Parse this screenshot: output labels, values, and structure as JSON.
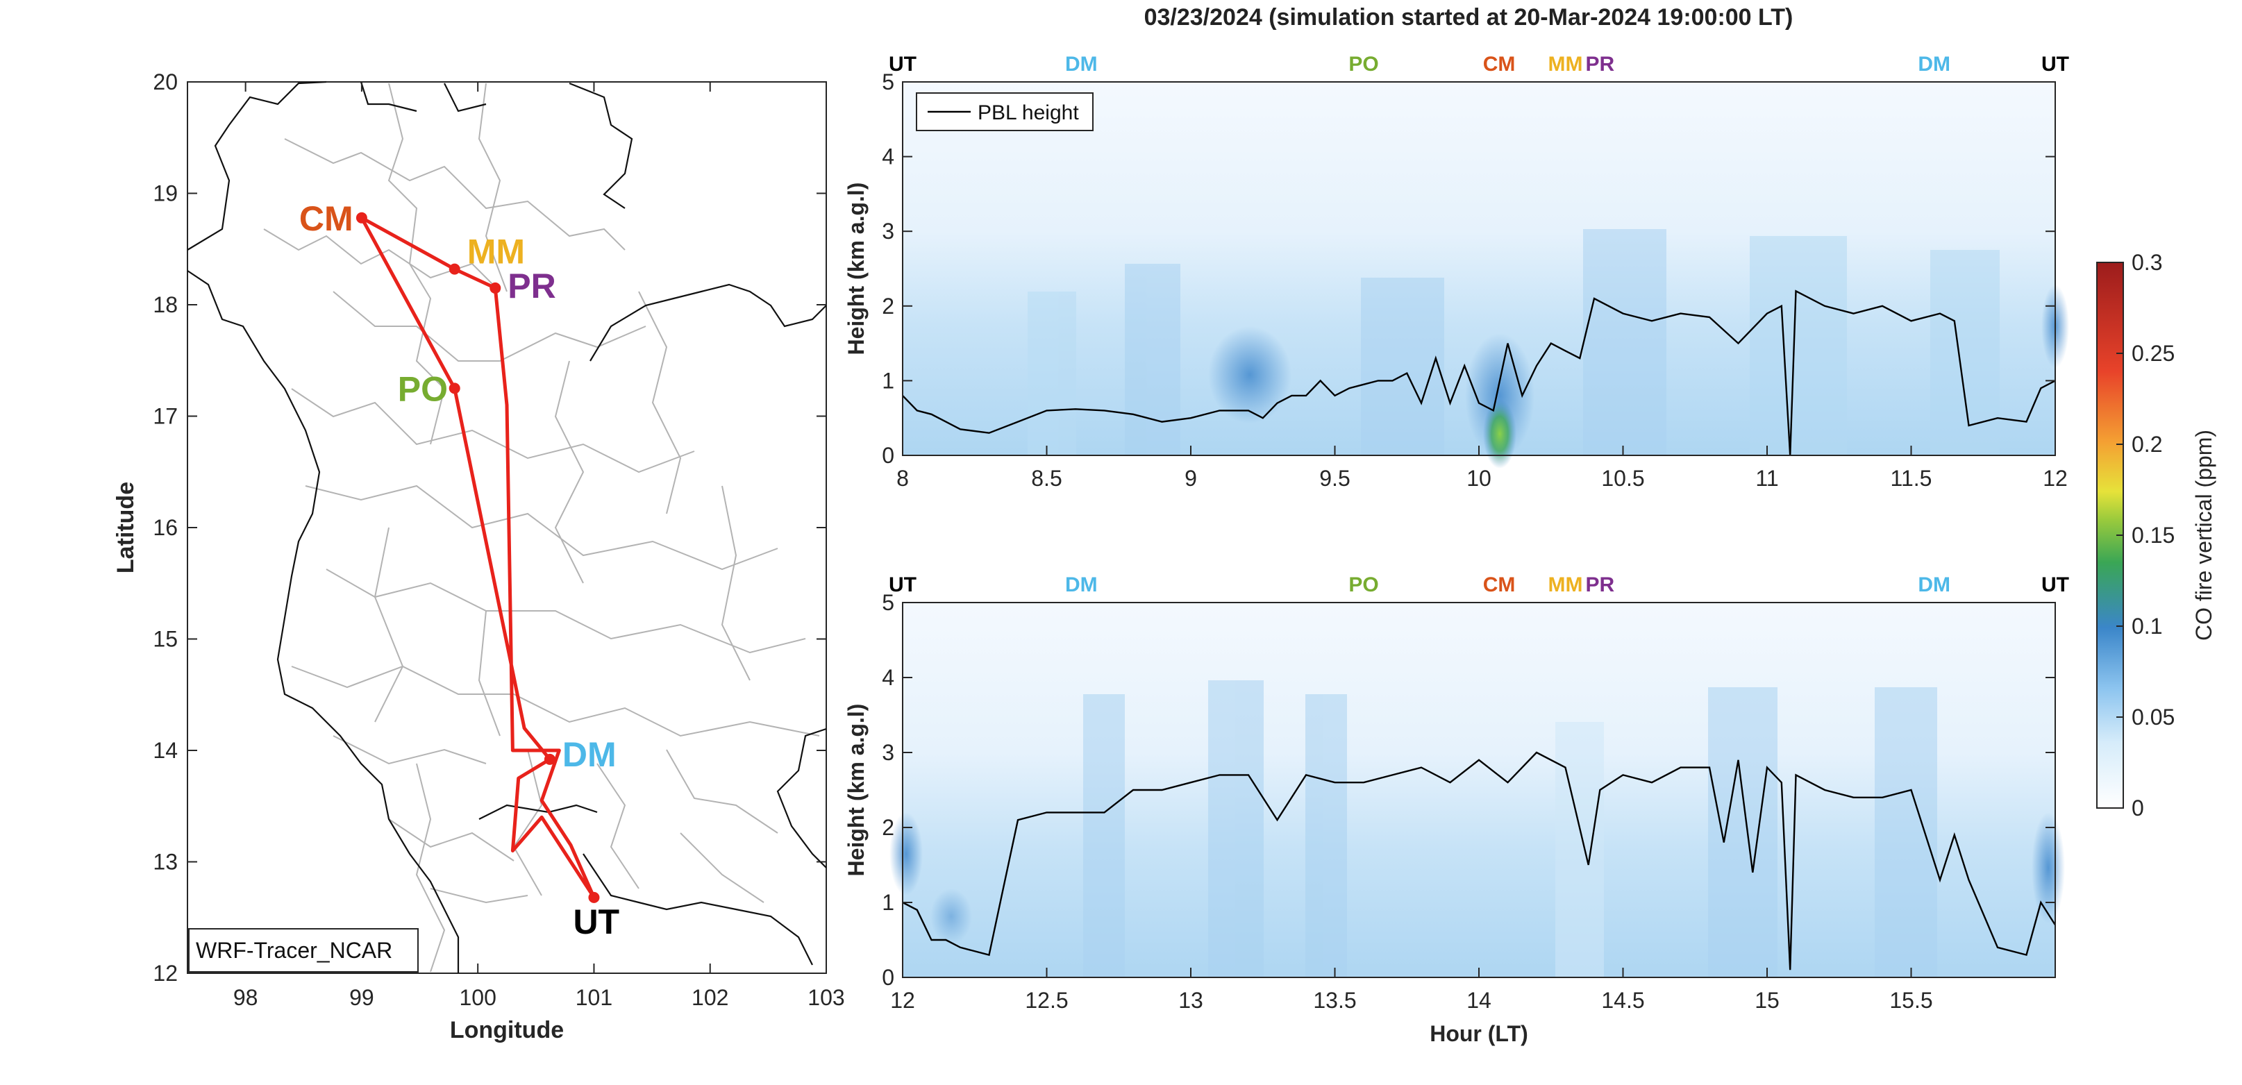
{
  "figure": {
    "title": "03/23/2024 (simulation started at 20-Mar-2024 19:00:00 LT)"
  },
  "chart_data": [
    {
      "type": "map",
      "xlabel": "Longitude",
      "ylabel": "Latitude",
      "xlim": [
        97.5,
        103
      ],
      "ylim": [
        12,
        20
      ],
      "xticks": [
        "98",
        "99",
        "100",
        "101",
        "102",
        "103"
      ],
      "yticks": [
        "12",
        "13",
        "14",
        "15",
        "16",
        "17",
        "18",
        "19",
        "20"
      ],
      "annotation": "WRF-Tracer_NCAR",
      "route_color": "#e8221b",
      "route": [
        [
          101.0,
          12.68
        ],
        [
          100.55,
          13.4
        ],
        [
          100.3,
          13.1
        ],
        [
          100.35,
          13.75
        ],
        [
          100.62,
          13.92
        ],
        [
          100.4,
          14.2
        ],
        [
          99.8,
          17.25
        ],
        [
          99.0,
          18.78
        ],
        [
          99.8,
          18.32
        ],
        [
          100.15,
          18.15
        ],
        [
          100.25,
          17.1
        ],
        [
          100.3,
          14.0
        ],
        [
          100.7,
          14.0
        ],
        [
          100.55,
          13.55
        ],
        [
          100.8,
          13.15
        ],
        [
          101.0,
          12.68
        ]
      ],
      "sites": [
        {
          "label": "UT",
          "lon": 101.0,
          "lat": 12.68,
          "color": "#000000"
        },
        {
          "label": "DM",
          "lon": 100.62,
          "lat": 13.92,
          "color": "#4db8e8"
        },
        {
          "label": "PO",
          "lon": 99.8,
          "lat": 17.25,
          "color": "#77ac30"
        },
        {
          "label": "CM",
          "lon": 99.0,
          "lat": 18.78,
          "color": "#d95319"
        },
        {
          "label": "MM",
          "lon": 99.8,
          "lat": 18.32,
          "color": "#edb120"
        },
        {
          "label": "PR",
          "lon": 100.15,
          "lat": 18.15,
          "color": "#7e2f8e"
        }
      ]
    },
    {
      "type": "heatmap",
      "ylabel": "Height (km a.g.l)",
      "xlim": [
        8,
        12
      ],
      "ylim": [
        0,
        5
      ],
      "xticks": [
        "8",
        "8.5",
        "9",
        "9.5",
        "10",
        "10.5",
        "11",
        "11.5",
        "12"
      ],
      "yticks": [
        "0",
        "1",
        "2",
        "3",
        "4",
        "5"
      ],
      "legend": "PBL height",
      "legend_position": "top-left",
      "site_markers": [
        {
          "label": "UT",
          "x": 8.0,
          "color": "#000000"
        },
        {
          "label": "DM",
          "x": 8.62,
          "color": "#4db8e8"
        },
        {
          "label": "PO",
          "x": 9.6,
          "color": "#77ac30"
        },
        {
          "label": "CM",
          "x": 10.07,
          "color": "#d95319"
        },
        {
          "label": "MM",
          "x": 10.3,
          "color": "#edb120"
        },
        {
          "label": "PR",
          "x": 10.42,
          "color": "#7e2f8e"
        },
        {
          "label": "DM",
          "x": 11.58,
          "color": "#4db8e8"
        },
        {
          "label": "UT",
          "x": 12.0,
          "color": "#000000"
        }
      ],
      "pbl_height": {
        "x": [
          8.0,
          8.05,
          8.1,
          8.15,
          8.2,
          8.3,
          8.4,
          8.5,
          8.6,
          8.7,
          8.8,
          8.9,
          9.0,
          9.1,
          9.2,
          9.25,
          9.3,
          9.35,
          9.4,
          9.45,
          9.5,
          9.55,
          9.6,
          9.65,
          9.7,
          9.75,
          9.8,
          9.85,
          9.9,
          9.95,
          10.0,
          10.05,
          10.1,
          10.15,
          10.2,
          10.25,
          10.3,
          10.35,
          10.4,
          10.5,
          10.6,
          10.7,
          10.8,
          10.9,
          11.0,
          11.05,
          11.08,
          11.1,
          11.2,
          11.3,
          11.4,
          11.5,
          11.6,
          11.65,
          11.7,
          11.8,
          11.9,
          11.95,
          12.0
        ],
        "y": [
          0.8,
          0.6,
          0.55,
          0.45,
          0.35,
          0.3,
          0.45,
          0.6,
          0.62,
          0.6,
          0.55,
          0.45,
          0.5,
          0.6,
          0.6,
          0.5,
          0.7,
          0.8,
          0.8,
          1.0,
          0.8,
          0.9,
          0.95,
          1.0,
          1.0,
          1.1,
          0.7,
          1.3,
          0.7,
          1.2,
          0.7,
          0.6,
          1.5,
          0.8,
          1.2,
          1.5,
          1.4,
          1.3,
          2.1,
          1.9,
          1.8,
          1.9,
          1.85,
          1.5,
          1.9,
          2.0,
          0.0,
          2.2,
          2.0,
          1.9,
          2.0,
          1.8,
          1.9,
          1.8,
          0.4,
          0.5,
          0.45,
          0.9,
          1.0
        ]
      }
    },
    {
      "type": "heatmap",
      "xlabel": "Hour (LT)",
      "ylabel": "Height (km a.g.l)",
      "xlim": [
        12,
        16
      ],
      "ylim": [
        0,
        5
      ],
      "xticks": [
        "12",
        "12.5",
        "13",
        "13.5",
        "14",
        "14.5",
        "15",
        "15.5"
      ],
      "yticks": [
        "0",
        "1",
        "2",
        "3",
        "4",
        "5"
      ],
      "site_markers": [
        {
          "label": "UT",
          "x": 12.0,
          "color": "#000000"
        },
        {
          "label": "DM",
          "x": 12.62,
          "color": "#4db8e8"
        },
        {
          "label": "PO",
          "x": 13.6,
          "color": "#77ac30"
        },
        {
          "label": "CM",
          "x": 14.07,
          "color": "#d95319"
        },
        {
          "label": "MM",
          "x": 14.3,
          "color": "#edb120"
        },
        {
          "label": "PR",
          "x": 14.42,
          "color": "#7e2f8e"
        },
        {
          "label": "DM",
          "x": 15.58,
          "color": "#4db8e8"
        },
        {
          "label": "UT",
          "x": 16.0,
          "color": "#000000"
        }
      ],
      "pbl_height": {
        "x": [
          12.0,
          12.05,
          12.1,
          12.15,
          12.2,
          12.3,
          12.35,
          12.4,
          12.5,
          12.6,
          12.7,
          12.8,
          12.9,
          13.0,
          13.1,
          13.2,
          13.3,
          13.4,
          13.5,
          13.6,
          13.7,
          13.8,
          13.9,
          14.0,
          14.1,
          14.2,
          14.3,
          14.38,
          14.42,
          14.5,
          14.6,
          14.7,
          14.8,
          14.85,
          14.9,
          14.95,
          15.0,
          15.05,
          15.08,
          15.1,
          15.2,
          15.3,
          15.4,
          15.5,
          15.6,
          15.65,
          15.7,
          15.8,
          15.9,
          15.95,
          16.0
        ],
        "y": [
          1.0,
          0.9,
          0.5,
          0.5,
          0.4,
          0.3,
          1.2,
          2.1,
          2.2,
          2.2,
          2.2,
          2.5,
          2.5,
          2.6,
          2.7,
          2.7,
          2.1,
          2.7,
          2.6,
          2.6,
          2.7,
          2.8,
          2.6,
          2.9,
          2.6,
          3.0,
          2.8,
          1.5,
          2.5,
          2.7,
          2.6,
          2.8,
          2.8,
          1.8,
          2.9,
          1.4,
          2.8,
          2.6,
          0.1,
          2.7,
          2.5,
          2.4,
          2.4,
          2.5,
          1.3,
          1.9,
          1.3,
          0.4,
          0.3,
          1.0,
          0.7
        ]
      }
    },
    {
      "type": "colorbar",
      "label": "CO fire vertical (ppm)",
      "range": [
        0,
        0.3
      ],
      "ticks": [
        "0",
        "0.05",
        "0.1",
        "0.15",
        "0.2",
        "0.25",
        "0.3"
      ]
    }
  ]
}
